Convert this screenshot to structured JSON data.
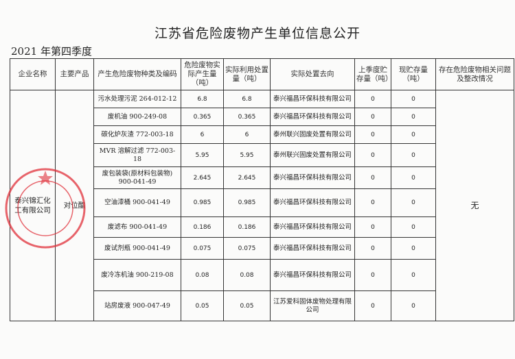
{
  "title": "江苏省危险废物产生单位信息公开",
  "quarter": "2021 年第四季度",
  "headers": [
    "企业名称",
    "主要产品",
    "产生危险废物种类及编码",
    "危险废物实际产生量（吨）",
    "实际利用处置量（吨）",
    "实际处置去向",
    "上季度贮存量（吨）",
    "现贮存量（吨）",
    "存在危险废物相关问题及整改情况"
  ],
  "company": "泰兴锦汇化工有限公司",
  "product": "对位酯",
  "issues": "无",
  "stamp_text": "TAIXING JINHUI CHEMICAL CO.,LTD. 泰兴锦汇化工有限公司",
  "stamp_color": "#e0303a",
  "rows": [
    {
      "waste": "污水处理污泥 264-012-12",
      "generated": "6.8",
      "disposed": "6.8",
      "destination": "泰兴福昌环保科技有限公司",
      "prev_storage": "0",
      "storage": "0"
    },
    {
      "waste": "废机油 900-249-08",
      "generated": "0.365",
      "disposed": "0.365",
      "destination": "泰兴福昌环保科技有限公司",
      "prev_storage": "0",
      "storage": "0"
    },
    {
      "waste": "碳化炉灰渣 772-003-18",
      "generated": "6",
      "disposed": "6",
      "destination": "泰州联兴固废处置有限公司",
      "prev_storage": "0",
      "storage": "0"
    },
    {
      "waste": "MVR 溶解过滤 772-003-18",
      "generated": "5.95",
      "disposed": "5.95",
      "destination": "泰州联兴固废处置有限公司",
      "prev_storage": "0",
      "storage": "0"
    },
    {
      "waste": "废包装袋(原材料包装物) 900-041-49",
      "generated": "2.645",
      "disposed": "2.645",
      "destination": "泰兴福昌环保科技有限公司",
      "prev_storage": "0",
      "storage": "0"
    },
    {
      "waste": "空油漆桶 900-041-49",
      "generated": "0.985",
      "disposed": "0.985",
      "destination": "泰兴福昌环保科技有限公司",
      "prev_storage": "0",
      "storage": "0"
    },
    {
      "waste": "废滤布 900-041-49",
      "generated": "0.186",
      "disposed": "0.186",
      "destination": "泰兴福昌环保科技有限公司",
      "prev_storage": "0",
      "storage": "0"
    },
    {
      "waste": "废试剂瓶 900-041-49",
      "generated": "0.075",
      "disposed": "0.075",
      "destination": "泰兴福昌环保科技有限公司",
      "prev_storage": "0",
      "storage": "0"
    },
    {
      "waste": "废冷冻机油 900-219-08",
      "generated": "0.08",
      "disposed": "0.08",
      "destination": "泰兴福昌环保科技有限公司",
      "prev_storage": "0",
      "storage": "0"
    },
    {
      "waste": "站房废液 900-047-49",
      "generated": "0.05",
      "disposed": "0.05",
      "destination": "江苏爱科固体废物处理有限公司",
      "prev_storage": "0",
      "storage": "0"
    }
  ]
}
